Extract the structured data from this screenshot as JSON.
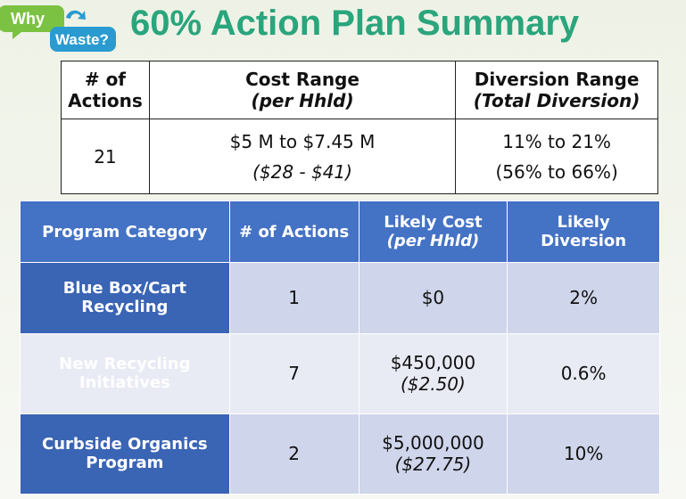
{
  "logo": {
    "top": "Why",
    "bottom": "Waste?"
  },
  "header": {
    "title": "60% Action Plan Summary"
  },
  "summary_table": {
    "columns": [
      {
        "text": "# of Actions"
      },
      {
        "text": "Cost Range",
        "note": "(per Hhld)"
      },
      {
        "text": "Diversion Range",
        "note": "(Total Diversion)"
      }
    ],
    "rows": [
      [
        {
          "text": "21"
        },
        {
          "text": "$5 M to $7.45 M",
          "note": "($28 - $41)"
        },
        {
          "text": "11% to 21%",
          "note": "(56% to 66%)"
        }
      ]
    ]
  },
  "program_table": {
    "columns": [
      {
        "text": "Program Category"
      },
      {
        "text": "# of Actions"
      },
      {
        "text": "Likely Cost",
        "note": "(per Hhld)"
      },
      {
        "text": "Likely Diversion"
      }
    ],
    "rows": [
      [
        {
          "text": "Blue Box/Cart Recycling"
        },
        {
          "text": "1"
        },
        {
          "text": "$0"
        },
        {
          "text": "2%"
        }
      ],
      [
        {
          "text": "New Recycling Initiatives"
        },
        {
          "text": "7"
        },
        {
          "text": "$450,000",
          "note": "($2.50)"
        },
        {
          "text": "0.6%"
        }
      ],
      [
        {
          "text": "Curbside Organics Program"
        },
        {
          "text": "2"
        },
        {
          "text": "$5,000,000",
          "note": "($27.75)"
        },
        {
          "text": "10%"
        }
      ]
    ]
  }
}
